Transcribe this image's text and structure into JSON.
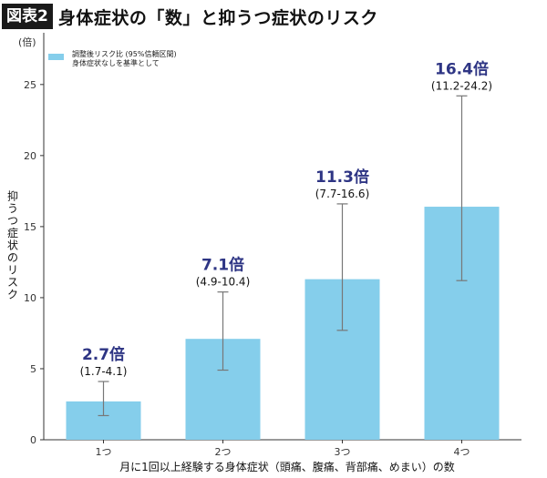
{
  "header": {
    "badge": "図表2",
    "title": "身体症状の「数」と抑うつ症状のリスク"
  },
  "colors": {
    "bar": "#85ceeb",
    "value_label": "#2e3584",
    "error_bar": "#777777"
  },
  "chart_data": {
    "type": "bar",
    "categories": [
      "1つ",
      "2つ",
      "3つ",
      "4つ"
    ],
    "values": [
      2.7,
      7.1,
      11.3,
      16.4
    ],
    "ci_low": [
      1.7,
      4.9,
      7.7,
      11.2
    ],
    "ci_high": [
      4.1,
      10.4,
      16.6,
      24.2
    ],
    "value_labels": [
      "2.7倍",
      "7.1倍",
      "11.3倍",
      "16.4倍"
    ],
    "ci_labels": [
      "(1.7-4.1)",
      "(4.9-10.4)",
      "(7.7-16.6)",
      "(11.2-24.2)"
    ],
    "ylim": [
      0,
      28
    ],
    "yticks": [
      0,
      5,
      10,
      15,
      20,
      25
    ],
    "y_unit": "(倍)",
    "ylabel": "抑うつ症状のリスク",
    "xlabel": "月に1回以上経験する身体症状（頭痛、腹痛、背部痛、めまい）の数",
    "legend": {
      "position": "top-left",
      "lines": [
        "調整後リスク比 (95%信頼区間)",
        "身体症状なしを基準として"
      ]
    },
    "grid": false
  }
}
